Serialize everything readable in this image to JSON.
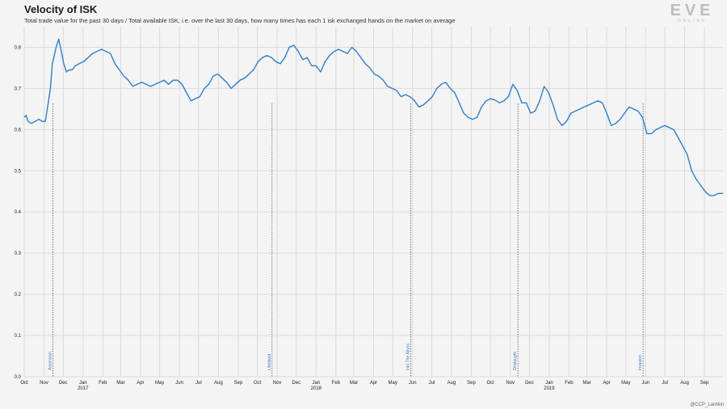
{
  "header": {
    "title": "Velocity of ISK",
    "subtitle": "Total trade value for the past 30 days / Total available ISK, i.e. over the last 30 days, how many times has each 1 isk exchanged hands on the market on average"
  },
  "logo": {
    "main": "EVE",
    "sub": "ONLINE"
  },
  "credit": "@CCP_Larrikin",
  "colors": {
    "line": "#2a7fd4",
    "annotation": "#3a7dc9",
    "grid": "#dadada",
    "background": "#f4f4f4"
  },
  "chart_data": {
    "type": "line",
    "title": "Velocity of ISK",
    "xlabel": "",
    "ylabel": "",
    "ylim": [
      0,
      0.85
    ],
    "xlim": [
      "2016-10-01",
      "2019-09-30"
    ],
    "yticks": [
      "0.0",
      "0.1",
      "0.2",
      "0.3",
      "0.4",
      "0.5",
      "0.6",
      "0.7",
      "0.8"
    ],
    "x_tick_labels": [
      {
        "date": "2016-10-01",
        "label": "Oct"
      },
      {
        "date": "2016-11-01",
        "label": "Nov"
      },
      {
        "date": "2016-12-01",
        "label": "Dec"
      },
      {
        "date": "2017-01-01",
        "label": "Jan",
        "year": "2017"
      },
      {
        "date": "2017-02-01",
        "label": "Feb"
      },
      {
        "date": "2017-03-01",
        "label": "Mar"
      },
      {
        "date": "2017-04-01",
        "label": "Apr"
      },
      {
        "date": "2017-05-01",
        "label": "May"
      },
      {
        "date": "2017-06-01",
        "label": "Jun"
      },
      {
        "date": "2017-07-01",
        "label": "Jul"
      },
      {
        "date": "2017-08-01",
        "label": "Aug"
      },
      {
        "date": "2017-09-01",
        "label": "Sep"
      },
      {
        "date": "2017-10-01",
        "label": "Oct"
      },
      {
        "date": "2017-11-01",
        "label": "Nov"
      },
      {
        "date": "2017-12-01",
        "label": "Dec"
      },
      {
        "date": "2018-01-01",
        "label": "Jan",
        "year": "2018"
      },
      {
        "date": "2018-02-01",
        "label": "Feb"
      },
      {
        "date": "2018-03-01",
        "label": "Mar"
      },
      {
        "date": "2018-04-01",
        "label": "Apr"
      },
      {
        "date": "2018-05-01",
        "label": "May"
      },
      {
        "date": "2018-06-01",
        "label": "Jun"
      },
      {
        "date": "2018-07-01",
        "label": "Jul"
      },
      {
        "date": "2018-08-01",
        "label": "Aug"
      },
      {
        "date": "2018-09-01",
        "label": "Sep"
      },
      {
        "date": "2018-10-01",
        "label": "Oct"
      },
      {
        "date": "2018-11-01",
        "label": "Nov"
      },
      {
        "date": "2018-12-01",
        "label": "Dec"
      },
      {
        "date": "2019-01-01",
        "label": "Jan",
        "year": "2019"
      },
      {
        "date": "2019-02-01",
        "label": "Feb"
      },
      {
        "date": "2019-03-01",
        "label": "Mar"
      },
      {
        "date": "2019-04-01",
        "label": "Apr"
      },
      {
        "date": "2019-05-01",
        "label": "May"
      },
      {
        "date": "2019-06-01",
        "label": "Jun"
      },
      {
        "date": "2019-07-01",
        "label": "Jul"
      },
      {
        "date": "2019-08-01",
        "label": "Aug"
      },
      {
        "date": "2019-09-01",
        "label": "Sep"
      }
    ],
    "annotations": [
      {
        "date": "2016-11-15",
        "label": "Ascension"
      },
      {
        "date": "2017-10-24",
        "label": "Lifeblood"
      },
      {
        "date": "2018-05-29",
        "label": "Into The Abyss"
      },
      {
        "date": "2018-11-13",
        "label": "Onslaught"
      },
      {
        "date": "2019-05-28",
        "label": "Invasion"
      }
    ],
    "series": [
      {
        "x": [
          "2016-10-01",
          "2016-10-04",
          "2016-10-07",
          "2016-10-12",
          "2016-10-18",
          "2016-10-24",
          "2016-10-29",
          "2016-11-03",
          "2016-11-07",
          "2016-11-11",
          "2016-11-14",
          "2016-11-17",
          "2016-11-20",
          "2016-11-24",
          "2016-11-28",
          "2016-12-02",
          "2016-12-06",
          "2016-12-10",
          "2016-12-15",
          "2016-12-20",
          "2016-12-26",
          "2017-01-02",
          "2017-01-09",
          "2017-01-16",
          "2017-01-23",
          "2017-01-30",
          "2017-02-06",
          "2017-02-13",
          "2017-02-20",
          "2017-02-27",
          "2017-03-06",
          "2017-03-13",
          "2017-03-20",
          "2017-03-27",
          "2017-04-03",
          "2017-04-10",
          "2017-04-17",
          "2017-04-24",
          "2017-05-01",
          "2017-05-08",
          "2017-05-15",
          "2017-05-22",
          "2017-05-29",
          "2017-06-05",
          "2017-06-12",
          "2017-06-19",
          "2017-06-26",
          "2017-07-03",
          "2017-07-10",
          "2017-07-17",
          "2017-07-24",
          "2017-07-31",
          "2017-08-07",
          "2017-08-14",
          "2017-08-21",
          "2017-08-28",
          "2017-09-04",
          "2017-09-11",
          "2017-09-18",
          "2017-09-25",
          "2017-10-02",
          "2017-10-09",
          "2017-10-16",
          "2017-10-23",
          "2017-10-30",
          "2017-11-06",
          "2017-11-13",
          "2017-11-20",
          "2017-11-27",
          "2017-12-04",
          "2017-12-11",
          "2017-12-18",
          "2017-12-25",
          "2018-01-01",
          "2018-01-08",
          "2018-01-15",
          "2018-01-22",
          "2018-01-29",
          "2018-02-05",
          "2018-02-12",
          "2018-02-19",
          "2018-02-26",
          "2018-03-05",
          "2018-03-12",
          "2018-03-19",
          "2018-03-26",
          "2018-04-02",
          "2018-04-09",
          "2018-04-16",
          "2018-04-23",
          "2018-04-30",
          "2018-05-07",
          "2018-05-14",
          "2018-05-21",
          "2018-05-28",
          "2018-06-04",
          "2018-06-11",
          "2018-06-18",
          "2018-06-25",
          "2018-07-02",
          "2018-07-09",
          "2018-07-16",
          "2018-07-23",
          "2018-07-30",
          "2018-08-06",
          "2018-08-13",
          "2018-08-20",
          "2018-08-27",
          "2018-09-03",
          "2018-09-10",
          "2018-09-17",
          "2018-09-24",
          "2018-10-01",
          "2018-10-08",
          "2018-10-15",
          "2018-10-22",
          "2018-10-29",
          "2018-11-05",
          "2018-11-12",
          "2018-11-19",
          "2018-11-26",
          "2018-12-03",
          "2018-12-10",
          "2018-12-17",
          "2018-12-24",
          "2018-12-31",
          "2019-01-07",
          "2019-01-14",
          "2019-01-21",
          "2019-01-28",
          "2019-02-04",
          "2019-02-11",
          "2019-02-18",
          "2019-02-25",
          "2019-03-04",
          "2019-03-11",
          "2019-03-18",
          "2019-03-25",
          "2019-04-01",
          "2019-04-08",
          "2019-04-15",
          "2019-04-22",
          "2019-04-29",
          "2019-05-06",
          "2019-05-13",
          "2019-05-20",
          "2019-05-27",
          "2019-06-03",
          "2019-06-10",
          "2019-06-17",
          "2019-06-24",
          "2019-07-01",
          "2019-07-08",
          "2019-07-15",
          "2019-07-22",
          "2019-07-29",
          "2019-08-05",
          "2019-08-12",
          "2019-08-19",
          "2019-08-26",
          "2019-09-02",
          "2019-09-09",
          "2019-09-16",
          "2019-09-23",
          "2019-09-30"
        ],
        "y": [
          0.63,
          0.635,
          0.62,
          0.615,
          0.62,
          0.625,
          0.62,
          0.62,
          0.66,
          0.7,
          0.76,
          0.78,
          0.8,
          0.82,
          0.79,
          0.76,
          0.74,
          0.745,
          0.745,
          0.755,
          0.76,
          0.765,
          0.775,
          0.785,
          0.79,
          0.795,
          0.79,
          0.785,
          0.76,
          0.745,
          0.73,
          0.72,
          0.705,
          0.71,
          0.715,
          0.71,
          0.705,
          0.71,
          0.715,
          0.72,
          0.71,
          0.72,
          0.72,
          0.71,
          0.69,
          0.67,
          0.675,
          0.68,
          0.7,
          0.71,
          0.73,
          0.735,
          0.725,
          0.715,
          0.7,
          0.71,
          0.72,
          0.725,
          0.735,
          0.745,
          0.765,
          0.775,
          0.78,
          0.775,
          0.765,
          0.76,
          0.775,
          0.8,
          0.805,
          0.79,
          0.77,
          0.775,
          0.755,
          0.755,
          0.74,
          0.765,
          0.78,
          0.79,
          0.795,
          0.79,
          0.785,
          0.8,
          0.79,
          0.775,
          0.76,
          0.75,
          0.735,
          0.73,
          0.72,
          0.705,
          0.7,
          0.695,
          0.68,
          0.685,
          0.68,
          0.67,
          0.655,
          0.66,
          0.67,
          0.68,
          0.7,
          0.71,
          0.715,
          0.7,
          0.69,
          0.665,
          0.64,
          0.63,
          0.625,
          0.63,
          0.655,
          0.67,
          0.675,
          0.672,
          0.665,
          0.67,
          0.68,
          0.71,
          0.695,
          0.665,
          0.665,
          0.64,
          0.645,
          0.67,
          0.705,
          0.69,
          0.66,
          0.625,
          0.61,
          0.62,
          0.64,
          0.645,
          0.65,
          0.655,
          0.66,
          0.665,
          0.67,
          0.665,
          0.64,
          0.61,
          0.615,
          0.625,
          0.64,
          0.655,
          0.65,
          0.645,
          0.63,
          0.59,
          0.59,
          0.6,
          0.605,
          0.61,
          0.605,
          0.6,
          0.58,
          0.56,
          0.54,
          0.5,
          0.48,
          0.465,
          0.45,
          0.44,
          0.44,
          0.445,
          0.445
        ]
      }
    ]
  }
}
